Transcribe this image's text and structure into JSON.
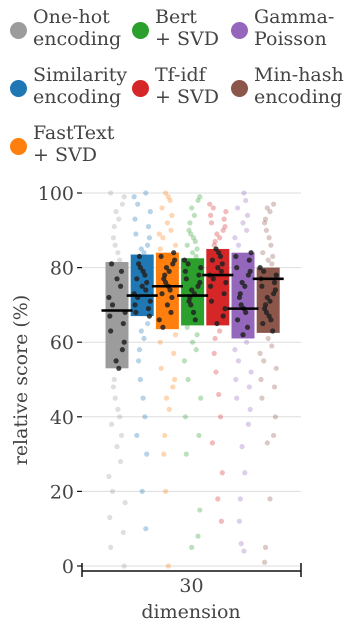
{
  "legend": {
    "items": [
      {
        "label": "One-hot\nencoding",
        "color": "#9c9c9c"
      },
      {
        "label": "Bert\n+ SVD",
        "color": "#2ca02c"
      },
      {
        "label": "Gamma-\nPoisson",
        "color": "#9467bd"
      },
      {
        "label": "Similarity\nencoding",
        "color": "#1f77b4"
      },
      {
        "label": "Tf-idf\n+ SVD",
        "color": "#d62728"
      },
      {
        "label": "Min-hash\nencoding",
        "color": "#8c564b"
      },
      {
        "label": "FastText\n+ SVD",
        "color": "#ff7f0e"
      }
    ]
  },
  "chart_data": {
    "type": "bar",
    "ylabel": "relative score (%)",
    "xlabel": "dimension",
    "categories": [
      "30"
    ],
    "ylim": [
      0,
      100
    ],
    "yticks": [
      0,
      20,
      40,
      60,
      80,
      100
    ],
    "grid": true,
    "legend_position": "top",
    "series": [
      {
        "name": "One-hot encoding",
        "color": "#9c9c9c",
        "q1": 53,
        "median": 68.5,
        "q3": 81.5,
        "points": [
          100,
          99,
          97,
          95,
          93,
          91,
          88,
          86,
          84,
          82,
          81,
          79,
          77,
          75,
          72,
          70,
          68,
          67,
          65,
          63,
          60,
          58,
          55,
          53,
          50,
          48,
          45,
          42,
          40,
          38,
          35,
          32,
          28,
          24,
          20,
          17,
          13,
          9,
          5,
          0
        ]
      },
      {
        "name": "Similarity encoding",
        "color": "#1f77b4",
        "q1": 67,
        "median": 72.5,
        "q3": 83.5,
        "points": [
          100,
          99,
          97,
          95,
          93,
          91,
          89,
          88,
          86,
          85,
          84,
          83,
          81,
          80,
          79,
          78,
          77,
          76,
          75,
          74,
          73,
          72,
          71,
          70,
          69,
          68,
          67,
          65,
          63,
          61,
          58,
          55,
          50,
          45,
          40,
          35,
          30,
          20,
          10
        ]
      },
      {
        "name": "FastText + SVD",
        "color": "#ff7f0e",
        "q1": 63.5,
        "median": 75,
        "q3": 84,
        "points": [
          100,
          99,
          98,
          96,
          94,
          92,
          90,
          89,
          88,
          86,
          85,
          84,
          83,
          82,
          81,
          80,
          79,
          78,
          77,
          76,
          75,
          74,
          73,
          72,
          70,
          68,
          66,
          64,
          62,
          60,
          57,
          53,
          50,
          48,
          45,
          42,
          35,
          30,
          20,
          0
        ]
      },
      {
        "name": "Bert + SVD",
        "color": "#2ca02c",
        "q1": 64.5,
        "median": 72.5,
        "q3": 82.5,
        "points": [
          99,
          98,
          96,
          94,
          92,
          90,
          89,
          88,
          87,
          86,
          85,
          84,
          83,
          82,
          81,
          80,
          79,
          78,
          77,
          76,
          75,
          74,
          73,
          72,
          71,
          70,
          68,
          66,
          64,
          62,
          60,
          58,
          55,
          50,
          45,
          40,
          35,
          30,
          15,
          8,
          5
        ]
      },
      {
        "name": "Tf-idf + SVD",
        "color": "#d62728",
        "q1": 64.5,
        "median": 78,
        "q3": 85,
        "points": [
          97,
          96,
          95,
          94,
          93,
          92,
          91,
          90,
          89,
          88,
          87,
          86,
          85,
          84,
          83,
          82,
          81,
          80,
          79,
          78,
          77,
          76,
          75,
          73,
          71,
          69,
          67,
          65,
          63,
          61,
          57,
          52,
          46,
          40,
          33,
          25,
          18,
          12
        ]
      },
      {
        "name": "Gamma-Poisson",
        "color": "#9467bd",
        "q1": 61,
        "median": 69,
        "q3": 84,
        "points": [
          100,
          98,
          96,
          94,
          92,
          90,
          88,
          86,
          84,
          83,
          82,
          80,
          79,
          78,
          76,
          75,
          73,
          72,
          70,
          69,
          68,
          66,
          64,
          62,
          60,
          58,
          55,
          52,
          50,
          48,
          45,
          42,
          38,
          32,
          25,
          18,
          12,
          6,
          4
        ]
      },
      {
        "name": "Min-hash encoding",
        "color": "#8c564b",
        "q1": 62.5,
        "median": 77,
        "q3": 80,
        "points": [
          97,
          96,
          95,
          93,
          92,
          90,
          88,
          86,
          84,
          83,
          82,
          81,
          80,
          79,
          78,
          77,
          76,
          75,
          74,
          73,
          72,
          71,
          70,
          69,
          68,
          67,
          66,
          65,
          63,
          61,
          59,
          57,
          55,
          53,
          50,
          48,
          45,
          40,
          35,
          33,
          18,
          5,
          1
        ]
      }
    ]
  }
}
